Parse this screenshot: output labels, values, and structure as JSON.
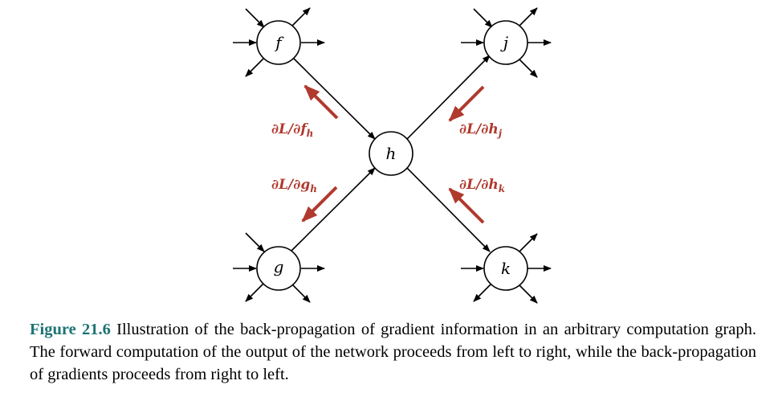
{
  "nodes": {
    "f": "f",
    "j": "j",
    "h": "h",
    "g": "g",
    "k": "k"
  },
  "gradients": {
    "dL_dfh": {
      "base": "∂L/∂f",
      "sub": "h"
    },
    "dL_dhj": {
      "base": "∂L/∂h",
      "sub": "j"
    },
    "dL_dgh": {
      "base": "∂L/∂g",
      "sub": "h"
    },
    "dL_dhk": {
      "base": "∂L/∂h",
      "sub": "k"
    }
  },
  "colors": {
    "gradient_arrow": "#b03a2e",
    "caption_number": "#1d7373"
  },
  "caption": {
    "number": "Figure 21.6",
    "text": "Illustration of the back-propagation of gradient information in an arbitrary computation graph. The forward computation of the output of the network proceeds from left to right, while the back-propagation of gradients proceeds from right to left."
  }
}
